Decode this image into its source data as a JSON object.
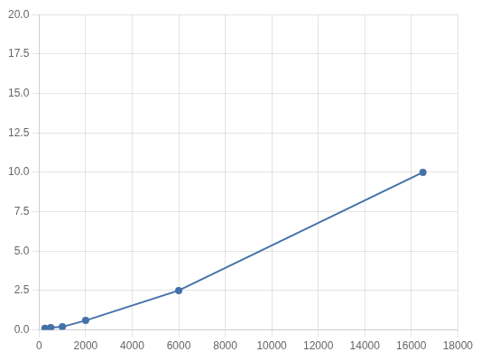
{
  "chart_data": {
    "type": "line",
    "x": [
      250,
      500,
      1000,
      2000,
      6000,
      16500
    ],
    "values": [
      0.1,
      0.15,
      0.2,
      0.6,
      2.5,
      10.0
    ],
    "color": "#4472a8",
    "marker": "circle",
    "xlim": [
      0,
      18000
    ],
    "xticks": [
      0,
      2000,
      4000,
      6000,
      8000,
      10000,
      12000,
      14000,
      16000,
      18000
    ],
    "ylim": [
      0,
      20.0
    ],
    "yticks": [
      {
        "value": 0,
        "label": "0.0"
      },
      2.5,
      {
        "value": 5,
        "label": "5.0"
      },
      7.5,
      {
        "value": 10,
        "label": "10.0"
      },
      12.5,
      {
        "value": 15,
        "label": "15.0"
      },
      17.5,
      {
        "value": 20,
        "label": "20.0"
      }
    ],
    "grid": true
  }
}
